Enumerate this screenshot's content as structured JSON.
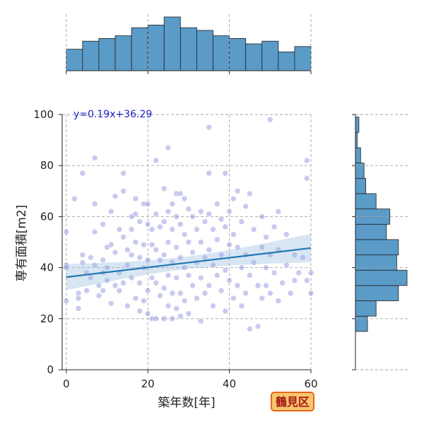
{
  "chart_data": {
    "type": "scatter",
    "xlabel": "築年数[年]",
    "ylabel": "専有面積[m2]",
    "xlim": [
      -1,
      60
    ],
    "ylim": [
      0,
      100
    ],
    "x_ticks": [
      0,
      20,
      40,
      60
    ],
    "y_ticks": [
      0,
      20,
      40,
      60,
      80,
      100
    ],
    "grid": true,
    "regression": {
      "slope": 0.19,
      "intercept": 36.29,
      "label": "y=0.19x+36.29"
    },
    "badge": "鶴見区",
    "points": [
      [
        0,
        54
      ],
      [
        0,
        41
      ],
      [
        0,
        40
      ],
      [
        0,
        27
      ],
      [
        2,
        67
      ],
      [
        3,
        24
      ],
      [
        3,
        30
      ],
      [
        3,
        28
      ],
      [
        4,
        77
      ],
      [
        4,
        42
      ],
      [
        4,
        45
      ],
      [
        5,
        38
      ],
      [
        5,
        31
      ],
      [
        6,
        44
      ],
      [
        6,
        36
      ],
      [
        7,
        83
      ],
      [
        7,
        65
      ],
      [
        7,
        54
      ],
      [
        7,
        41
      ],
      [
        8,
        33
      ],
      [
        8,
        29
      ],
      [
        9,
        57
      ],
      [
        9,
        43
      ],
      [
        9,
        38
      ],
      [
        9,
        31
      ],
      [
        10,
        48
      ],
      [
        10,
        40
      ],
      [
        10,
        35
      ],
      [
        11,
        62
      ],
      [
        11,
        49
      ],
      [
        11,
        26
      ],
      [
        12,
        68
      ],
      [
        12,
        46
      ],
      [
        12,
        33
      ],
      [
        13,
        55
      ],
      [
        13,
        38
      ],
      [
        13,
        31
      ],
      [
        14,
        77
      ],
      [
        14,
        70
      ],
      [
        14,
        52
      ],
      [
        14,
        34
      ],
      [
        15,
        47
      ],
      [
        15,
        41
      ],
      [
        15,
        25
      ],
      [
        16,
        60
      ],
      [
        16,
        55
      ],
      [
        16,
        45
      ],
      [
        16,
        36
      ],
      [
        17,
        67
      ],
      [
        17,
        61
      ],
      [
        17,
        50
      ],
      [
        17,
        28
      ],
      [
        18,
        58
      ],
      [
        18,
        44
      ],
      [
        18,
        34
      ],
      [
        18,
        23
      ],
      [
        19,
        65
      ],
      [
        19,
        49
      ],
      [
        19,
        40
      ],
      [
        19,
        27
      ],
      [
        20,
        65
      ],
      [
        20,
        57
      ],
      [
        20,
        43
      ],
      [
        20,
        31
      ],
      [
        20,
        22
      ],
      [
        21,
        55
      ],
      [
        21,
        49
      ],
      [
        21,
        36
      ],
      [
        21,
        20
      ],
      [
        22,
        82
      ],
      [
        22,
        61
      ],
      [
        22,
        47
      ],
      [
        22,
        34
      ],
      [
        22,
        20
      ],
      [
        23,
        56
      ],
      [
        23,
        43
      ],
      [
        23,
        29
      ],
      [
        24,
        71
      ],
      [
        24,
        58
      ],
      [
        24,
        45
      ],
      [
        24,
        32
      ],
      [
        24,
        20
      ],
      [
        25,
        87
      ],
      [
        25,
        62
      ],
      [
        25,
        50
      ],
      [
        25,
        37
      ],
      [
        25,
        25
      ],
      [
        26,
        65
      ],
      [
        26,
        55
      ],
      [
        26,
        42
      ],
      [
        26,
        30
      ],
      [
        26,
        20
      ],
      [
        27,
        69
      ],
      [
        27,
        60
      ],
      [
        27,
        48
      ],
      [
        27,
        36
      ],
      [
        27,
        24
      ],
      [
        28,
        69
      ],
      [
        28,
        57
      ],
      [
        28,
        44
      ],
      [
        28,
        30
      ],
      [
        28,
        21
      ],
      [
        29,
        67
      ],
      [
        29,
        53
      ],
      [
        29,
        40
      ],
      [
        29,
        27
      ],
      [
        30,
        63
      ],
      [
        30,
        50
      ],
      [
        30,
        37
      ],
      [
        30,
        22
      ],
      [
        31,
        60
      ],
      [
        31,
        46
      ],
      [
        31,
        33
      ],
      [
        32,
        55
      ],
      [
        32,
        42
      ],
      [
        32,
        28
      ],
      [
        33,
        62
      ],
      [
        33,
        50
      ],
      [
        33,
        36
      ],
      [
        33,
        19
      ],
      [
        34,
        58
      ],
      [
        34,
        44
      ],
      [
        34,
        30
      ],
      [
        35,
        95
      ],
      [
        35,
        77
      ],
      [
        35,
        61
      ],
      [
        35,
        47
      ],
      [
        35,
        33
      ],
      [
        36,
        55
      ],
      [
        36,
        41
      ],
      [
        36,
        25
      ],
      [
        37,
        65
      ],
      [
        37,
        51
      ],
      [
        37,
        37
      ],
      [
        38,
        59
      ],
      [
        38,
        45
      ],
      [
        38,
        31
      ],
      [
        39,
        77
      ],
      [
        39,
        56
      ],
      [
        39,
        39
      ],
      [
        39,
        23
      ],
      [
        40,
        62
      ],
      [
        40,
        49
      ],
      [
        40,
        35
      ],
      [
        41,
        67
      ],
      [
        41,
        53
      ],
      [
        41,
        28
      ],
      [
        42,
        70
      ],
      [
        42,
        48
      ],
      [
        42,
        33
      ],
      [
        43,
        58
      ],
      [
        43,
        40
      ],
      [
        43,
        25
      ],
      [
        44,
        64
      ],
      [
        44,
        45
      ],
      [
        44,
        30
      ],
      [
        45,
        69
      ],
      [
        45,
        37
      ],
      [
        45,
        16
      ],
      [
        46,
        55
      ],
      [
        46,
        42
      ],
      [
        47,
        33
      ],
      [
        47,
        17
      ],
      [
        48,
        60
      ],
      [
        48,
        48
      ],
      [
        48,
        28
      ],
      [
        49,
        52
      ],
      [
        49,
        40
      ],
      [
        49,
        33
      ],
      [
        50,
        98
      ],
      [
        50,
        45
      ],
      [
        50,
        30
      ],
      [
        51,
        56
      ],
      [
        51,
        38
      ],
      [
        52,
        62
      ],
      [
        52,
        47
      ],
      [
        52,
        27
      ],
      [
        53,
        34
      ],
      [
        54,
        53
      ],
      [
        54,
        41
      ],
      [
        55,
        30
      ],
      [
        56,
        45
      ],
      [
        56,
        35
      ],
      [
        57,
        38
      ],
      [
        58,
        44
      ],
      [
        59,
        82
      ],
      [
        59,
        75
      ],
      [
        59,
        35
      ],
      [
        60,
        38
      ],
      [
        60,
        30
      ]
    ]
  }
}
